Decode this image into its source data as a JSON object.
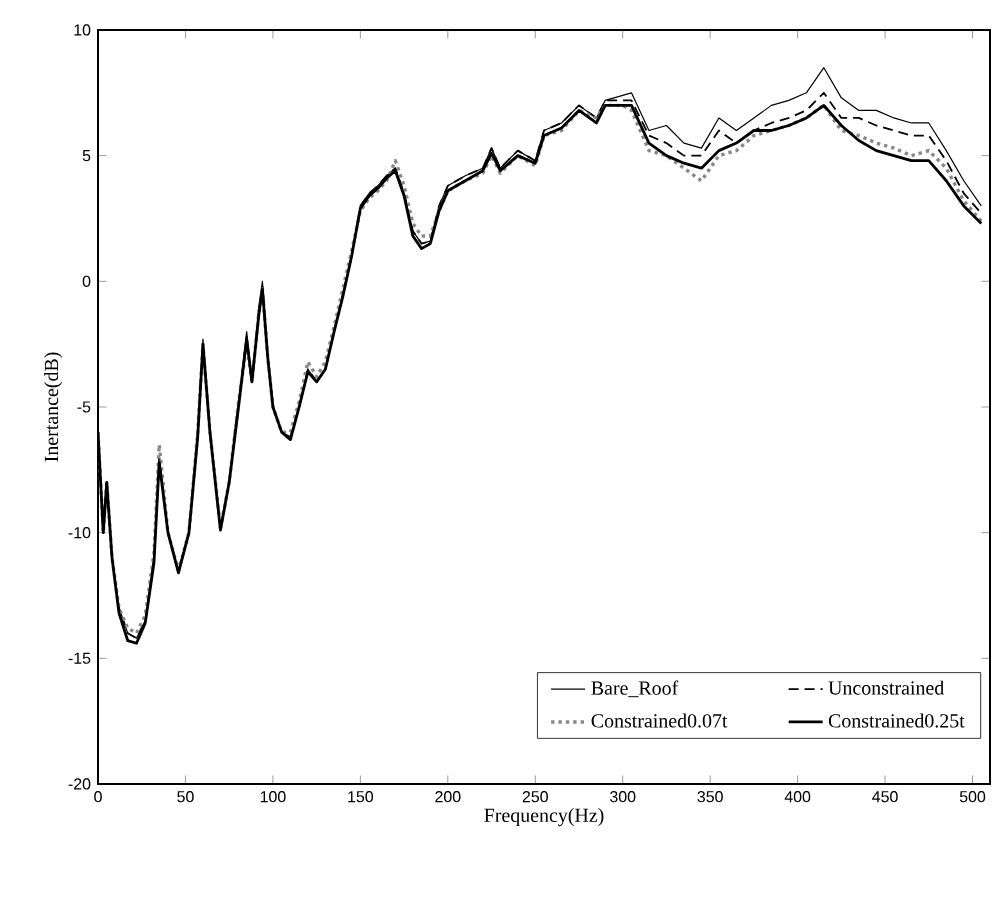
{
  "chart_data": {
    "type": "line",
    "xlabel": "Frequency(Hz)",
    "ylabel": "Inertance(dB)",
    "xlim": [
      0,
      510
    ],
    "ylim": [
      -20,
      10
    ],
    "xticks": [
      0,
      50,
      100,
      150,
      200,
      250,
      300,
      350,
      400,
      450,
      500
    ],
    "yticks": [
      -20,
      -15,
      -10,
      -5,
      0,
      5,
      10
    ],
    "grid": false,
    "legend": "bottom right",
    "marker": "none",
    "x": [
      0,
      3,
      5,
      8,
      12,
      17,
      22,
      27,
      32,
      35,
      40,
      46,
      52,
      57,
      60,
      64,
      70,
      75,
      80,
      85,
      88,
      92,
      94,
      97,
      100,
      105,
      110,
      115,
      120,
      125,
      130,
      135,
      140,
      145,
      150,
      155,
      160,
      165,
      170,
      175,
      180,
      185,
      190,
      195,
      200,
      210,
      220,
      225,
      230,
      240,
      250,
      255,
      265,
      275,
      285,
      290,
      300,
      305,
      315,
      325,
      335,
      345,
      355,
      365,
      375,
      385,
      395,
      405,
      415,
      425,
      435,
      445,
      455,
      465,
      475,
      485,
      495,
      505
    ],
    "series": [
      {
        "name": "Bare_Roof",
        "color": "#000000",
        "line_style": "solid",
        "values": [
          -6,
          -10,
          -8,
          -11,
          -13,
          -14,
          -14.2,
          -13.5,
          -11,
          -7,
          -10,
          -11.5,
          -10,
          -6,
          -2.3,
          -6,
          -9.8,
          -8,
          -5,
          -2,
          -4,
          -1,
          0,
          -3,
          -5,
          -6,
          -6.2,
          -5,
          -3.5,
          -4,
          -3.5,
          -2,
          -0.5,
          1,
          3,
          3.5,
          3.8,
          4.2,
          4.5,
          3.5,
          2,
          1.5,
          1.6,
          3,
          3.8,
          4.2,
          4.5,
          5.3,
          4.5,
          5.2,
          4.8,
          6,
          6.3,
          7,
          6.5,
          7.2,
          7.4,
          7.5,
          6,
          6.2,
          5.5,
          5.3,
          6.5,
          6,
          6.5,
          7,
          7.2,
          7.5,
          8.5,
          7.3,
          6.8,
          6.8,
          6.5,
          6.3,
          6.3,
          5.2,
          4,
          3
        ]
      },
      {
        "name": "Unconstrained",
        "color": "#000000",
        "line_style": "dashed",
        "values": [
          -6,
          -10,
          -8,
          -11,
          -13,
          -14,
          -14.2,
          -13.5,
          -11,
          -7,
          -10,
          -11.5,
          -10,
          -6,
          -2.5,
          -6,
          -9.8,
          -8,
          -5,
          -2.2,
          -4,
          -1.2,
          -0.2,
          -3,
          -5,
          -6,
          -6.2,
          -5,
          -3.5,
          -4,
          -3.5,
          -2,
          -0.5,
          1,
          3,
          3.5,
          3.8,
          4.2,
          4.5,
          3.5,
          2,
          1.5,
          1.6,
          3,
          3.8,
          4.2,
          4.5,
          5.3,
          4.5,
          5.2,
          4.8,
          6,
          6.3,
          7,
          6.5,
          7.2,
          7.2,
          7.2,
          5.8,
          5.5,
          5,
          5,
          6,
          5.5,
          6,
          6.3,
          6.5,
          6.8,
          7.5,
          6.5,
          6.5,
          6.2,
          6,
          5.8,
          5.8,
          4.8,
          3.5,
          2.7
        ]
      },
      {
        "name": "Constrained0.07t",
        "color": "#888888",
        "line_style": "dotted",
        "values": [
          -6,
          -10,
          -8,
          -11,
          -13,
          -13.8,
          -14,
          -13.3,
          -10.8,
          -6.5,
          -10,
          -11.5,
          -10,
          -6,
          -2.5,
          -6,
          -9.8,
          -8,
          -5,
          -2.5,
          -4,
          -1.2,
          -0.3,
          -3,
          -5,
          -6,
          -6,
          -4.8,
          -3.2,
          -3.8,
          -3.2,
          -1.8,
          -0.3,
          1.2,
          2.8,
          3.3,
          3.6,
          4,
          4.8,
          3.8,
          2.3,
          1.8,
          1.8,
          2.8,
          3.6,
          4,
          4.3,
          5,
          4.3,
          5,
          4.6,
          5.8,
          6,
          6.8,
          6.5,
          7,
          7,
          6.8,
          5.2,
          5,
          4.5,
          4,
          5,
          5.2,
          5.8,
          6,
          6.2,
          6.5,
          7,
          6,
          5.8,
          5.5,
          5.3,
          5,
          5.2,
          4.5,
          3.2,
          2.4
        ]
      },
      {
        "name": "Constrained0.25t",
        "color": "#000000",
        "line_style": "solid",
        "values": [
          -6,
          -10,
          -8,
          -11,
          -13.2,
          -14.3,
          -14.4,
          -13.6,
          -11.2,
          -7.2,
          -10,
          -11.6,
          -10,
          -6.2,
          -2.5,
          -6,
          -9.9,
          -8,
          -5.2,
          -2.3,
          -4,
          -1.3,
          -0.3,
          -3,
          -5,
          -6,
          -6.3,
          -5,
          -3.6,
          -4,
          -3.5,
          -2,
          -0.6,
          1,
          2.9,
          3.4,
          3.7,
          4.1,
          4.4,
          3.4,
          1.8,
          1.3,
          1.5,
          2.8,
          3.6,
          4,
          4.4,
          5.1,
          4.4,
          5,
          4.7,
          5.8,
          6.1,
          6.8,
          6.3,
          7,
          7,
          7,
          5.5,
          5,
          4.7,
          4.5,
          5.2,
          5.5,
          6,
          6,
          6.2,
          6.5,
          7,
          6.2,
          5.6,
          5.2,
          5,
          4.8,
          4.8,
          4,
          3,
          2.3
        ]
      }
    ]
  }
}
